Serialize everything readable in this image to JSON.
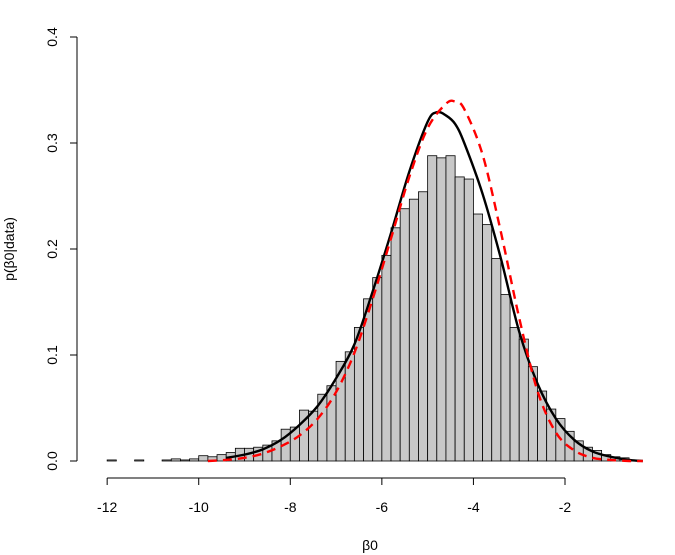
{
  "chart_data": {
    "type": "bar",
    "subtype": "histogram with density curves",
    "title": "",
    "xlabel": "β0",
    "ylabel": "p(β0|data)",
    "xlim": [
      -12.2,
      0.25
    ],
    "ylim": [
      0,
      0.4
    ],
    "x_ticks": [
      -12,
      -10,
      -8,
      -6,
      -4,
      -2
    ],
    "x_tick_labels": [
      "-12",
      "-10",
      "-8",
      "-6",
      "-4",
      "-2"
    ],
    "y_ticks": [
      0.0,
      0.1,
      0.2,
      0.3,
      0.4
    ],
    "y_tick_labels": [
      "0.0",
      "0.1",
      "0.2",
      "0.3",
      "0.4"
    ],
    "grid": false,
    "legend": "none",
    "histogram": {
      "bin_width": 0.2,
      "fill_color": "#c8c8c8",
      "edge_color": "#000000",
      "bins_left_edge": [
        -12.0,
        -11.8,
        -11.6,
        -11.4,
        -11.2,
        -11.0,
        -10.8,
        -10.6,
        -10.4,
        -10.2,
        -10.0,
        -9.8,
        -9.6,
        -9.4,
        -9.2,
        -9.0,
        -8.8,
        -8.6,
        -8.4,
        -8.2,
        -8.0,
        -7.8,
        -7.6,
        -7.4,
        -7.2,
        -7.0,
        -6.8,
        -6.6,
        -6.4,
        -6.2,
        -6.0,
        -5.8,
        -5.6,
        -5.4,
        -5.2,
        -5.0,
        -4.8,
        -4.6,
        -4.4,
        -4.2,
        -4.0,
        -3.8,
        -3.6,
        -3.4,
        -3.2,
        -3.0,
        -2.8,
        -2.6,
        -2.4,
        -2.2,
        -2.0,
        -1.8,
        -1.6,
        -1.4,
        -1.2,
        -1.0,
        -0.8,
        -0.6
      ],
      "density": [
        0.001,
        0.0,
        0.0,
        0.001,
        0.0,
        0.0,
        0.001,
        0.002,
        0.001,
        0.002,
        0.005,
        0.004,
        0.006,
        0.008,
        0.012,
        0.012,
        0.013,
        0.015,
        0.019,
        0.03,
        0.032,
        0.048,
        0.047,
        0.063,
        0.071,
        0.094,
        0.103,
        0.126,
        0.153,
        0.173,
        0.194,
        0.22,
        0.238,
        0.247,
        0.254,
        0.288,
        0.286,
        0.288,
        0.268,
        0.266,
        0.233,
        0.223,
        0.191,
        0.157,
        0.126,
        0.115,
        0.089,
        0.066,
        0.049,
        0.04,
        0.028,
        0.019,
        0.013,
        0.01,
        0.006,
        0.004,
        0.003,
        0.001
      ]
    },
    "series": [
      {
        "style": "solid",
        "color": "#000000",
        "x": [
          -9.4,
          -9.0,
          -8.6,
          -8.2,
          -7.8,
          -7.4,
          -7.0,
          -6.6,
          -6.2,
          -5.8,
          -5.4,
          -5.0,
          -4.8,
          -4.6,
          -4.4,
          -4.2,
          -3.8,
          -3.4,
          -3.0,
          -2.6,
          -2.2,
          -1.8,
          -1.4,
          -1.0,
          -0.6,
          -0.3
        ],
        "y": [
          0.003,
          0.006,
          0.011,
          0.02,
          0.034,
          0.052,
          0.078,
          0.11,
          0.16,
          0.215,
          0.273,
          0.32,
          0.329,
          0.326,
          0.318,
          0.3,
          0.252,
          0.191,
          0.122,
          0.073,
          0.04,
          0.02,
          0.009,
          0.004,
          0.001,
          0.0
        ]
      },
      {
        "style": "dashed",
        "color": "#ff0000",
        "x": [
          -9.8,
          -9.4,
          -9.0,
          -8.6,
          -8.2,
          -7.8,
          -7.4,
          -7.0,
          -6.6,
          -6.2,
          -5.8,
          -5.4,
          -5.0,
          -4.6,
          -4.4,
          -4.2,
          -3.8,
          -3.4,
          -3.0,
          -2.6,
          -2.2,
          -1.8,
          -1.4,
          -1.0,
          -0.6,
          -0.3
        ],
        "y": [
          0.0,
          0.001,
          0.003,
          0.007,
          0.014,
          0.024,
          0.04,
          0.065,
          0.102,
          0.153,
          0.21,
          0.268,
          0.314,
          0.337,
          0.339,
          0.332,
          0.289,
          0.216,
          0.135,
          0.066,
          0.027,
          0.01,
          0.003,
          0.001,
          0.0,
          0.0
        ]
      }
    ]
  }
}
